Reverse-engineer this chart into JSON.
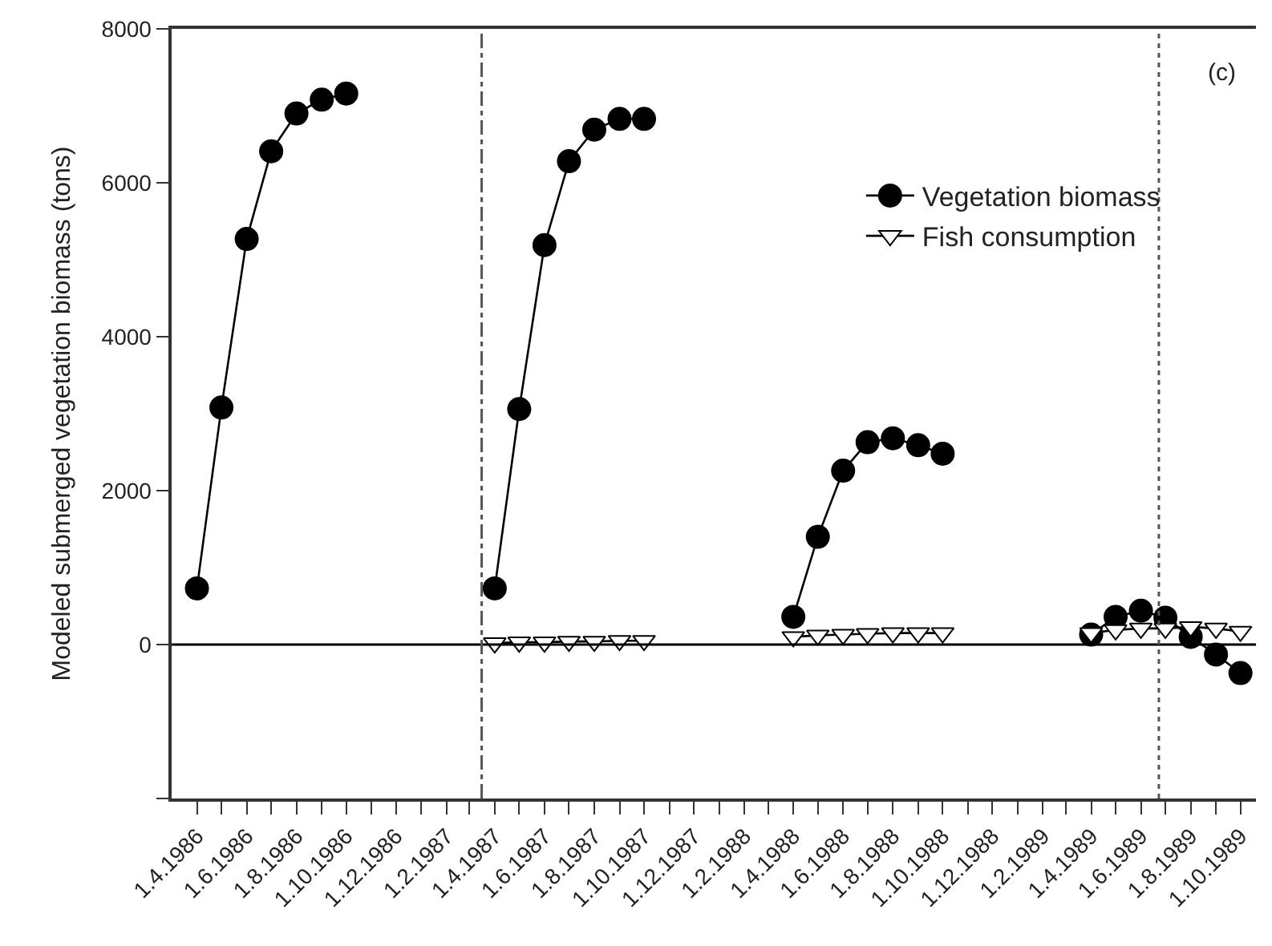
{
  "chart_data": {
    "type": "line",
    "ylabel": "Modeled submerged vegetation biomass (tons)",
    "annotations": [
      "(c)"
    ],
    "series": [
      {
        "name": "Vegetation biomass",
        "color": "#000000",
        "marker": "circle",
        "x": [
          "1986-04-01",
          "1986-05-01",
          "1986-06-01",
          "1986-07-01",
          "1986-08-01",
          "1986-09-01",
          "1986-10-01",
          "1986-11-01",
          "1987-04-01",
          "1987-05-01",
          "1987-06-01",
          "1987-07-01",
          "1987-08-01",
          "1987-09-01",
          "1987-10-01",
          "1987-11-01",
          "1988-04-01",
          "1988-05-01",
          "1988-06-01",
          "1988-07-01",
          "1988-08-01",
          "1988-09-01",
          "1988-10-01",
          "1988-11-01",
          "1989-04-01",
          "1989-05-01",
          "1989-06-01",
          "1989-07-01",
          "1989-08-01",
          "1989-09-01",
          "1989-10-01"
        ],
        "values": [
          730,
          3080,
          5270,
          6410,
          6900,
          7080,
          7160,
          null,
          730,
          3060,
          5190,
          6280,
          6690,
          6830,
          6830,
          null,
          360,
          1400,
          2260,
          2630,
          2680,
          2590,
          2480,
          null,
          130,
          360,
          440,
          350,
          100,
          -130,
          -370
        ]
      },
      {
        "name": "Fish consumption",
        "color": "#ffffff",
        "marker": "triangle-down",
        "x": [
          "1987-04-01",
          "1987-05-01",
          "1987-06-01",
          "1987-07-01",
          "1987-08-01",
          "1987-09-01",
          "1987-10-01",
          "1987-11-01",
          "1988-04-01",
          "1988-05-01",
          "1988-06-01",
          "1988-07-01",
          "1988-08-01",
          "1988-09-01",
          "1988-10-01",
          "1988-11-01",
          "1989-04-01",
          "1989-05-01",
          "1989-06-01",
          "1989-07-01",
          "1989-08-01",
          "1989-09-01",
          "1989-10-01"
        ],
        "values": [
          20,
          30,
          30,
          40,
          40,
          50,
          50,
          null,
          100,
          120,
          130,
          140,
          150,
          150,
          150,
          null,
          150,
          190,
          210,
          210,
          230,
          210,
          170
        ]
      }
    ],
    "xlim": [
      "1986-03-01",
      "1989-10-20"
    ],
    "xticks": [
      {
        "value": "1986-04-01",
        "label": "1.4.1986"
      },
      {
        "value": "1986-05-01",
        "label": null
      },
      {
        "value": "1986-06-01",
        "label": "1.6.1986"
      },
      {
        "value": "1986-07-01",
        "label": null
      },
      {
        "value": "1986-08-01",
        "label": "1.8.1986"
      },
      {
        "value": "1986-09-01",
        "label": null
      },
      {
        "value": "1986-10-01",
        "label": "1.10.1986"
      },
      {
        "value": "1986-11-01",
        "label": null
      },
      {
        "value": "1986-12-01",
        "label": "1.12.1986"
      },
      {
        "value": "1987-01-01",
        "label": null
      },
      {
        "value": "1987-02-01",
        "label": "1.2.1987"
      },
      {
        "value": "1987-03-01",
        "label": null
      },
      {
        "value": "1987-04-01",
        "label": "1.4.1987"
      },
      {
        "value": "1987-05-01",
        "label": null
      },
      {
        "value": "1987-06-01",
        "label": "1.6.1987"
      },
      {
        "value": "1987-07-01",
        "label": null
      },
      {
        "value": "1987-08-01",
        "label": "1.8.1987"
      },
      {
        "value": "1987-09-01",
        "label": null
      },
      {
        "value": "1987-10-01",
        "label": "1.10.1987"
      },
      {
        "value": "1987-11-01",
        "label": null
      },
      {
        "value": "1987-12-01",
        "label": "1.12.1987"
      },
      {
        "value": "1988-01-01",
        "label": null
      },
      {
        "value": "1988-02-01",
        "label": "1.2.1988"
      },
      {
        "value": "1988-03-01",
        "label": null
      },
      {
        "value": "1988-04-01",
        "label": "1.4.1988"
      },
      {
        "value": "1988-05-01",
        "label": null
      },
      {
        "value": "1988-06-01",
        "label": "1.6.1988"
      },
      {
        "value": "1988-07-01",
        "label": null
      },
      {
        "value": "1988-08-01",
        "label": "1.8.1988"
      },
      {
        "value": "1988-09-01",
        "label": null
      },
      {
        "value": "1988-10-01",
        "label": "1.10.1988"
      },
      {
        "value": "1988-11-01",
        "label": null
      },
      {
        "value": "1988-12-01",
        "label": "1.12.1988"
      },
      {
        "value": "1989-01-01",
        "label": null
      },
      {
        "value": "1989-02-01",
        "label": "1.2.1989"
      },
      {
        "value": "1989-03-01",
        "label": null
      },
      {
        "value": "1989-04-01",
        "label": "1.4.1989"
      },
      {
        "value": "1989-05-01",
        "label": null
      },
      {
        "value": "1989-06-01",
        "label": "1.6.1989"
      },
      {
        "value": "1989-07-01",
        "label": null
      },
      {
        "value": "1989-08-01",
        "label": "1.8.1989"
      },
      {
        "value": "1989-09-01",
        "label": null
      },
      {
        "value": "1989-10-01",
        "label": "1.10.1989"
      }
    ],
    "ylim": [
      -2000,
      8000
    ],
    "yticks": [
      {
        "value": -2000,
        "label": null
      },
      0,
      2000,
      4000,
      6000,
      8000
    ],
    "ref_lines": [
      {
        "axis": "y",
        "value": 0,
        "color": "#000000",
        "line_style": "solid"
      },
      {
        "axis": "x",
        "value": "1987-03-16",
        "color": "#555555",
        "line_style": "dashdot"
      },
      {
        "axis": "x",
        "value": "1989-06-23",
        "color": "#555555",
        "line_style": "dotted"
      }
    ],
    "legend": "top right",
    "line_style": "solid"
  }
}
